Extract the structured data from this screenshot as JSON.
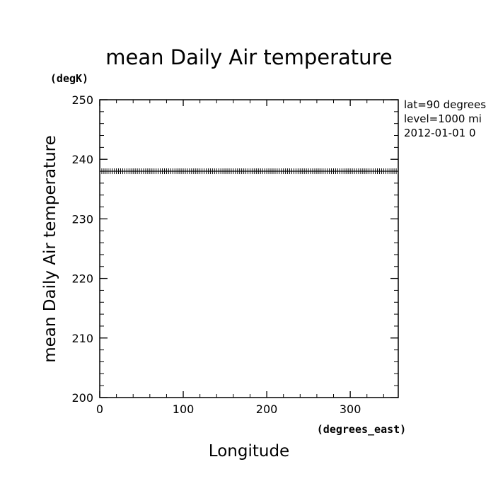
{
  "chart_data": {
    "type": "line",
    "title": "mean Daily Air temperature",
    "ylabel": "mean Daily Air temperature",
    "y_units": "(degK)",
    "xlabel": "Longitude",
    "x_units": "(degrees_east)",
    "xlim": [
      0,
      357.5
    ],
    "ylim": [
      200,
      250
    ],
    "x_ticks": [
      0,
      100,
      200,
      300
    ],
    "y_ticks": [
      200,
      210,
      220,
      230,
      240,
      250
    ],
    "annotations": [
      "lat=90 degrees",
      "level=1000 mi",
      "2012-01-01 0"
    ],
    "series": [
      {
        "x_start": 0,
        "x_step": 2.5,
        "x_end": 357.5,
        "value": 238,
        "markers": "plus"
      }
    ]
  }
}
